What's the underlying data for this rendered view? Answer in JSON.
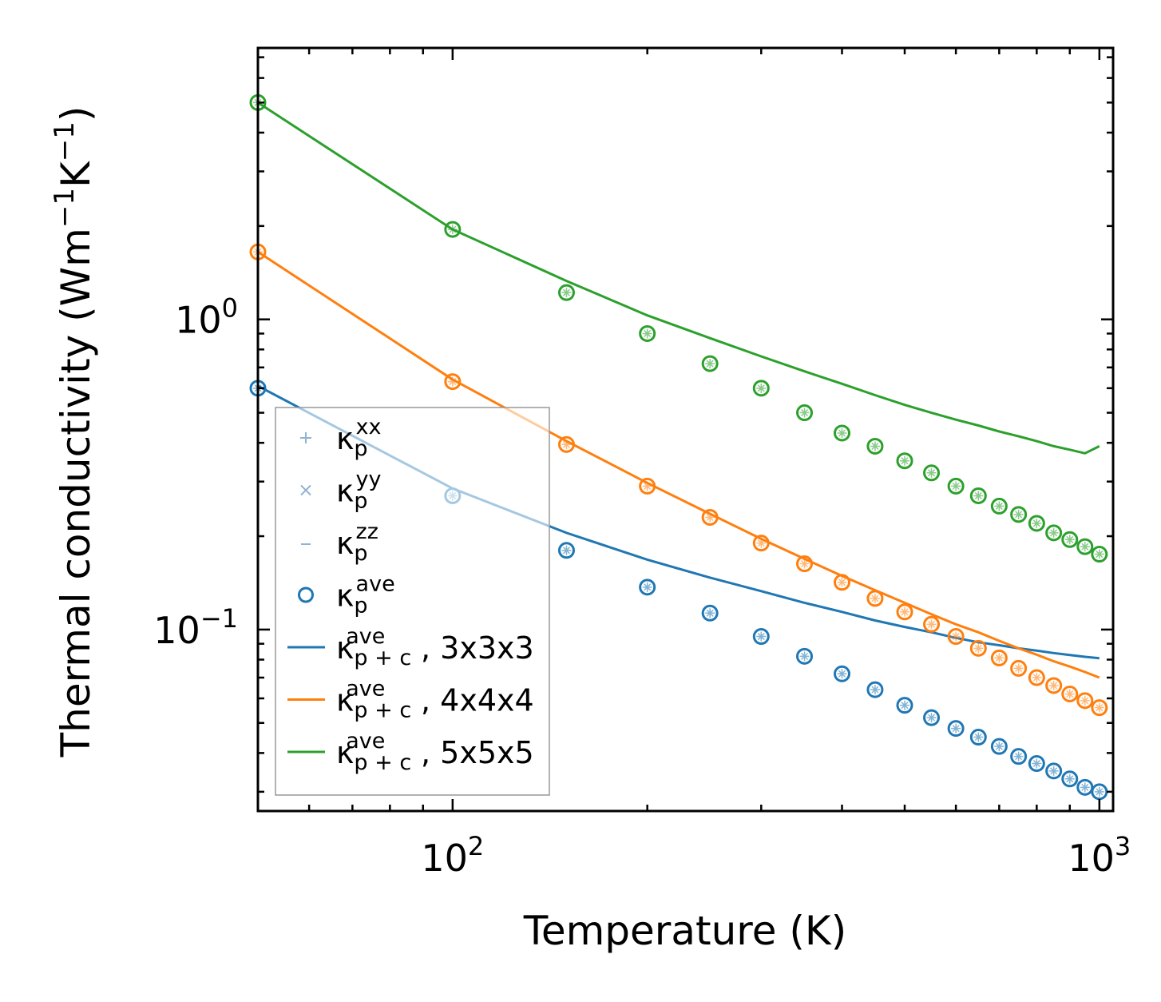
{
  "chart_data": {
    "type": "scatter",
    "xscale": "log",
    "yscale": "log",
    "xlabel": "Temperature (K)",
    "ylabel": "Thermal conductivity (Wm",
    "ylabel_unit_parts": [
      "−1",
      "K",
      "−1",
      ")"
    ],
    "xlim": [
      50,
      1050
    ],
    "ylim": [
      0.026,
      7.5
    ],
    "xticks": [
      {
        "value": 100,
        "base": "10",
        "exp": "2"
      },
      {
        "value": 1000,
        "base": "10",
        "exp": "3"
      }
    ],
    "yticks": [
      {
        "value": 1.0,
        "base": "10",
        "exp": "0"
      },
      {
        "value": 0.1,
        "base": "10",
        "exp": "−1"
      }
    ],
    "x": [
      50,
      100,
      150,
      200,
      250,
      300,
      350,
      400,
      450,
      500,
      550,
      600,
      650,
      700,
      750,
      800,
      850,
      900,
      950,
      1000
    ],
    "series": [
      {
        "name": "3x3x3",
        "color": "#1f77b4",
        "points_ave": [
          0.6,
          0.27,
          0.18,
          0.137,
          0.113,
          0.095,
          0.082,
          0.072,
          0.064,
          0.057,
          0.052,
          0.048,
          0.045,
          0.042,
          0.039,
          0.037,
          0.035,
          0.033,
          0.031,
          0.03
        ],
        "line_ave": [
          0.61,
          0.285,
          0.205,
          0.168,
          0.147,
          0.133,
          0.122,
          0.114,
          0.107,
          0.102,
          0.098,
          0.094,
          0.091,
          0.089,
          0.087,
          0.0855,
          0.084,
          0.0828,
          0.0817,
          0.0808
        ]
      },
      {
        "name": "4x4x4",
        "color": "#ff7f0e",
        "points_ave": [
          1.65,
          0.63,
          0.395,
          0.29,
          0.23,
          0.19,
          0.163,
          0.142,
          0.126,
          0.114,
          0.104,
          0.095,
          0.087,
          0.081,
          0.075,
          0.07,
          0.066,
          0.062,
          0.059,
          0.056
        ],
        "line_ave": [
          1.65,
          0.64,
          0.405,
          0.297,
          0.236,
          0.196,
          0.169,
          0.149,
          0.134,
          0.122,
          0.112,
          0.104,
          0.098,
          0.092,
          0.087,
          0.083,
          0.079,
          0.076,
          0.073,
          0.07
        ]
      },
      {
        "name": "5x5x5",
        "color": "#2ca02c",
        "points_ave": [
          5.0,
          1.95,
          1.22,
          0.9,
          0.72,
          0.6,
          0.5,
          0.43,
          0.39,
          0.35,
          0.32,
          0.29,
          0.27,
          0.25,
          0.235,
          0.22,
          0.205,
          0.195,
          0.185,
          0.175
        ],
        "line_ave": [
          5.0,
          1.95,
          1.33,
          1.03,
          0.87,
          0.76,
          0.68,
          0.62,
          0.57,
          0.53,
          0.5,
          0.475,
          0.455,
          0.435,
          0.42,
          0.405,
          0.39,
          0.38,
          0.37,
          0.39
        ]
      }
    ],
    "legend": {
      "position": "lower-left",
      "entries": [
        {
          "marker": "plus",
          "kappa": "κ",
          "sub": "p",
          "sup": "xx",
          "suffix": ""
        },
        {
          "marker": "cross",
          "kappa": "κ",
          "sub": "p",
          "sup": "yy",
          "suffix": ""
        },
        {
          "marker": "dash",
          "kappa": "κ",
          "sub": "p",
          "sup": "zz",
          "suffix": ""
        },
        {
          "marker": "circle",
          "kappa": "κ",
          "sub": "p",
          "sup": "ave",
          "suffix": ""
        },
        {
          "marker": "line",
          "color": "#1f77b4",
          "kappa": "κ",
          "sub": "p + c",
          "sup": "ave",
          "suffix": ", 3x3x3"
        },
        {
          "marker": "line",
          "color": "#ff7f0e",
          "kappa": "κ",
          "sub": "p + c",
          "sup": "ave",
          "suffix": ", 4x4x4"
        },
        {
          "marker": "line",
          "color": "#2ca02c",
          "kappa": "κ",
          "sub": "p + c",
          "sup": "ave",
          "suffix": ", 5x5x5"
        }
      ]
    }
  }
}
